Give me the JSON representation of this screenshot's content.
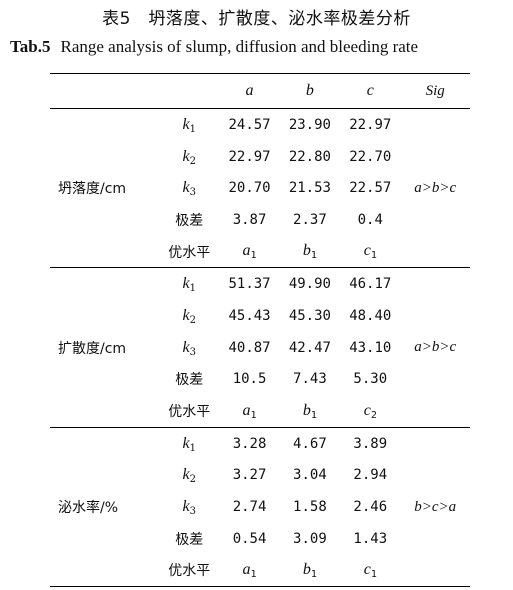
{
  "caption": {
    "cn": "表5　坍落度、扩散度、泌水率极差分析",
    "en_num": "Tab.5",
    "en_title": "Range analysis of slump, diffusion and bleeding rate"
  },
  "header": {
    "col_a": "a",
    "col_b": "b",
    "col_c": "c",
    "col_sig": "Sig"
  },
  "groups": [
    {
      "metric": "坍落度/cm",
      "sig": "a>b>c",
      "k1": [
        "24.57",
        "23.90",
        "22.97"
      ],
      "k2": [
        "22.97",
        "22.80",
        "22.70"
      ],
      "k3": [
        "20.70",
        "21.53",
        "22.57"
      ],
      "range_label": "极差",
      "range": [
        "3.87",
        "2.37",
        "0.4"
      ],
      "opt_label": "优水平",
      "opt": [
        {
          "s": "a",
          "n": "1"
        },
        {
          "s": "b",
          "n": "1"
        },
        {
          "s": "c",
          "n": "1"
        }
      ]
    },
    {
      "metric": "扩散度/cm",
      "sig": "a>b>c",
      "k1": [
        "51.37",
        "49.90",
        "46.17"
      ],
      "k2": [
        "45.43",
        "45.30",
        "48.40"
      ],
      "k3": [
        "40.87",
        "42.47",
        "43.10"
      ],
      "range_label": "极差",
      "range": [
        "10.5",
        "7.43",
        "5.30"
      ],
      "opt_label": "优水平",
      "opt": [
        {
          "s": "a",
          "n": "1"
        },
        {
          "s": "b",
          "n": "1"
        },
        {
          "s": "c",
          "n": "2"
        }
      ]
    },
    {
      "metric": "泌水率/%",
      "sig": "b>c>a",
      "k1": [
        "3.28",
        "4.67",
        "3.89"
      ],
      "k2": [
        "3.27",
        "3.04",
        "2.94"
      ],
      "k3": [
        "2.74",
        "1.58",
        "2.46"
      ],
      "range_label": "极差",
      "range": [
        "0.54",
        "3.09",
        "1.43"
      ],
      "opt_label": "优水平",
      "opt": [
        {
          "s": "a",
          "n": "1"
        },
        {
          "s": "b",
          "n": "1"
        },
        {
          "s": "c",
          "n": "1"
        }
      ]
    }
  ],
  "k_labels": [
    {
      "s": "k",
      "n": "1"
    },
    {
      "s": "k",
      "n": "2"
    },
    {
      "s": "k",
      "n": "3"
    }
  ]
}
